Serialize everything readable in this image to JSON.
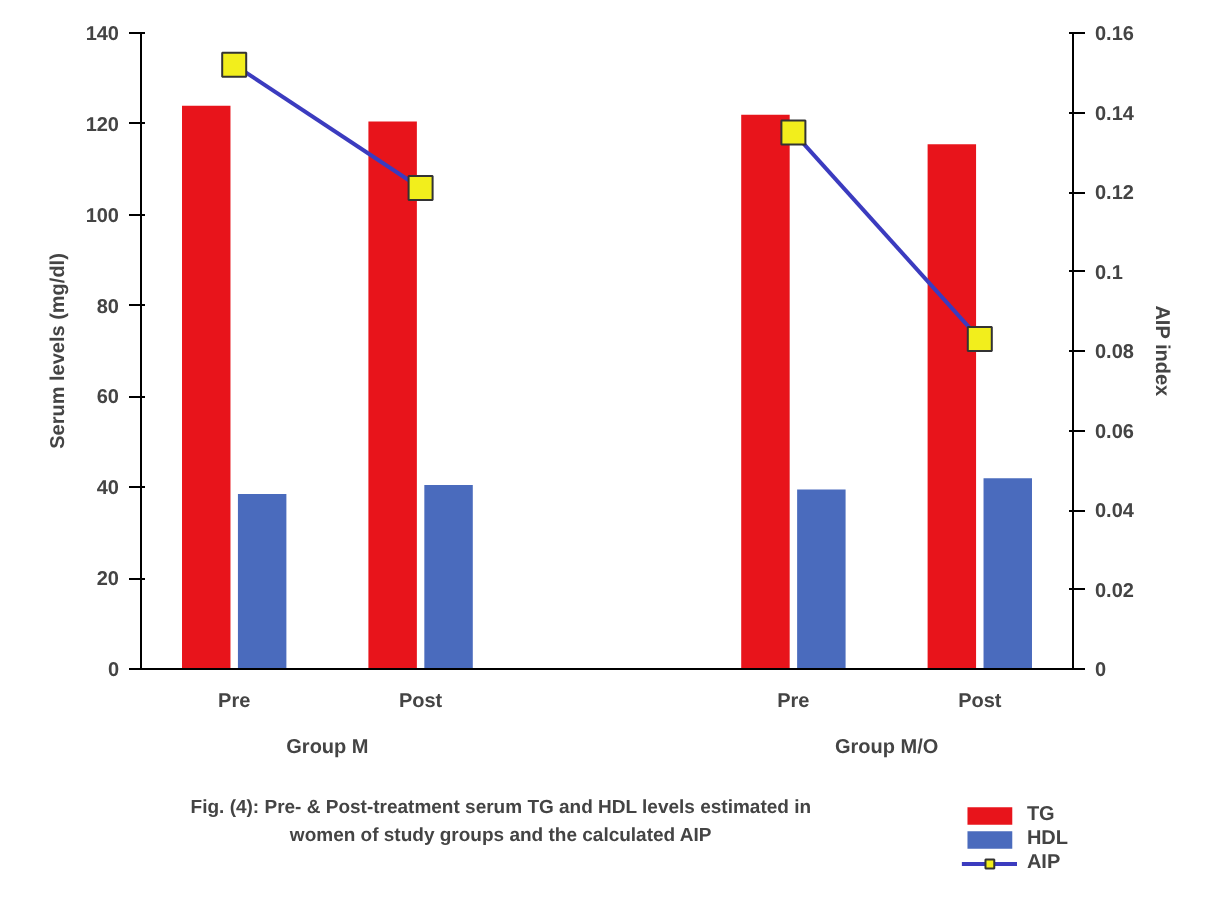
{
  "chart_data": {
    "type": "bar",
    "title": "Fig. (4): Pre- & Post-treatment serum TG and HDL levels estimated in women of study groups and the calculated AIP",
    "ylabel": "Serum levels (mg/dl)",
    "y2label": "AIP index",
    "categories": [
      "Pre",
      "Post",
      null,
      "Pre",
      "Post"
    ],
    "annotations": [
      "Group M",
      "Group M/O"
    ],
    "series": [
      {
        "name": "TG",
        "color": "#e8141b",
        "values": [
          124,
          120.5,
          null,
          122,
          115.5
        ]
      },
      {
        "name": "HDL",
        "color": "#4a6bbd",
        "values": [
          38.5,
          40.5,
          null,
          39.5,
          42
        ]
      },
      {
        "name": "AIP",
        "type": "line",
        "axis": "y2",
        "color": "#3b3bbf",
        "values": [
          0.152,
          0.121,
          null,
          0.135,
          0.083
        ]
      }
    ],
    "ylim": [
      0,
      140
    ],
    "yticks": [
      0,
      20,
      40,
      60,
      80,
      100,
      120,
      140
    ],
    "y2lim": [
      0,
      0.16
    ],
    "y2ticks": [
      0,
      0.02,
      0.04,
      0.06,
      0.08,
      0.1,
      0.12,
      0.14,
      0.16
    ],
    "marker": "square",
    "legend": "bottom right"
  }
}
